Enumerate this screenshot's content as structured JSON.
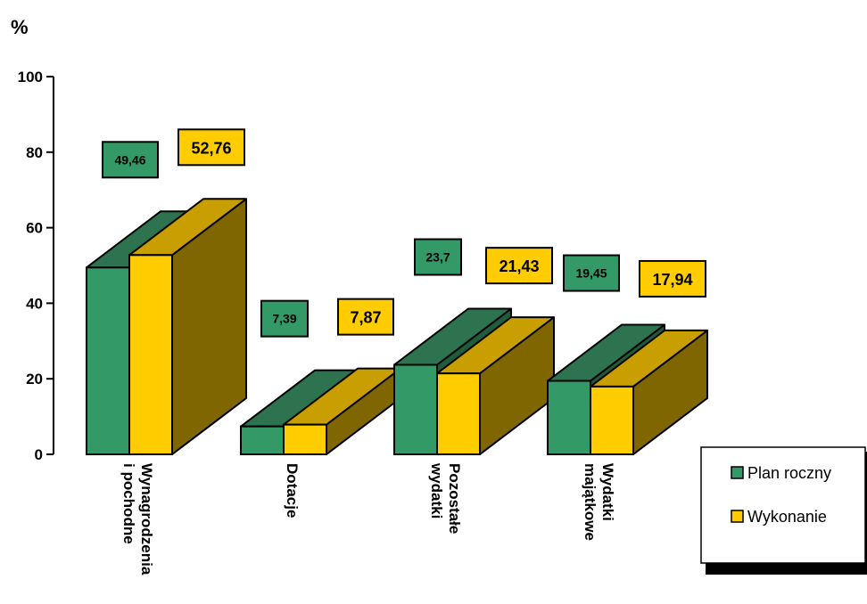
{
  "chart_data": {
    "type": "bar",
    "ylabel": "%",
    "ylim": [
      0,
      100
    ],
    "yticks": [
      "0",
      "20",
      "40",
      "60",
      "80",
      "100"
    ],
    "categories": [
      [
        "Wynagrodzenia",
        "i pochodne"
      ],
      [
        "Dotacje"
      ],
      [
        "Pozostałe",
        "wydatki"
      ],
      [
        "Wydatki",
        "majątkowe"
      ]
    ],
    "series": [
      {
        "name": "Plan roczny",
        "values": [
          49.46,
          7.39,
          23.7,
          19.45
        ],
        "labels": [
          "49,46",
          "7,39",
          "23,7",
          "19,45"
        ],
        "colors": {
          "front": "#339966",
          "top": "#2d7350",
          "side": "#1f5c3d"
        }
      },
      {
        "name": "Wykonanie",
        "values": [
          52.76,
          7.87,
          21.43,
          17.94
        ],
        "labels": [
          "52,76",
          "7,87",
          "21,43",
          "17,94"
        ],
        "colors": {
          "front": "#ffcc00",
          "top": "#c99e00",
          "side": "#806600"
        }
      }
    ],
    "grid": false,
    "legend_position": "bottom-right"
  }
}
